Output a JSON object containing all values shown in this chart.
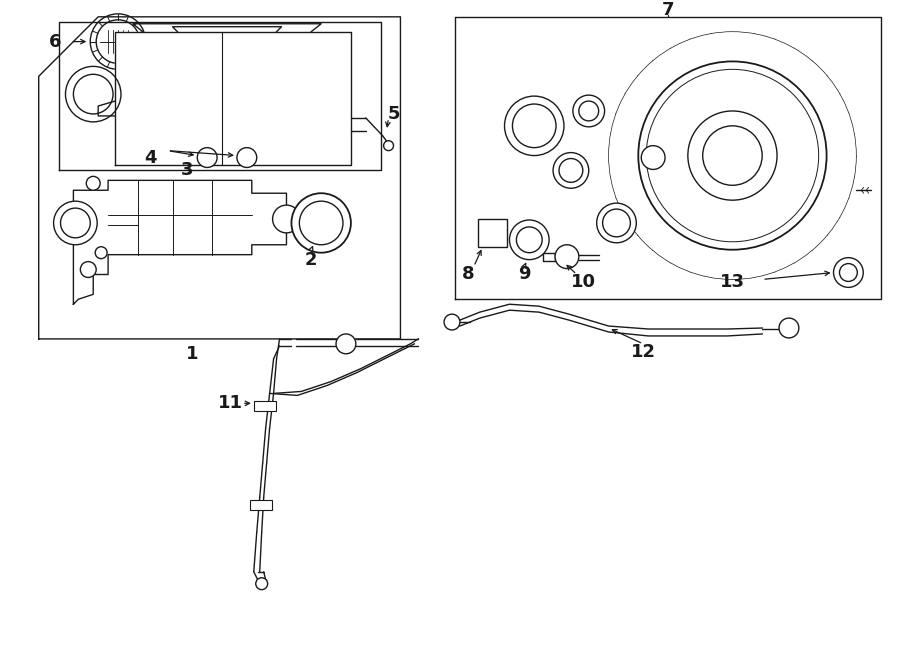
{
  "bg_color": "#ffffff",
  "line_color": "#1a1a1a",
  "fig_width": 9.0,
  "fig_height": 6.61,
  "dpi": 100,
  "lw": 1.0,
  "label_fontsize": 13
}
